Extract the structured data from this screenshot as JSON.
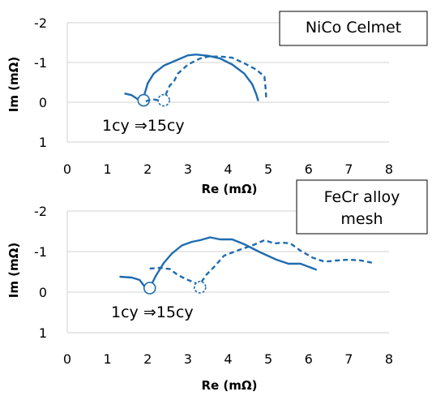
{
  "chart_data": [
    {
      "type": "line",
      "title": "NiCo Celmet",
      "xlabel": "Re (mΩ)",
      "ylabel": "Im  (mΩ)",
      "xlim": [
        0,
        8
      ],
      "ylim": [
        -2,
        1
      ],
      "y_inverted": true,
      "x_ticks": [
        "0",
        "1",
        "2",
        "3",
        "4",
        "5",
        "6",
        "7",
        "8"
      ],
      "y_ticks": [
        "-2",
        "-1",
        "0",
        "1"
      ],
      "grid": "horizontal",
      "annotation": "1cy ⇒15cy",
      "series": [
        {
          "style": "solid",
          "color": "#1f6cb0",
          "points": [
            [
              1.42,
              -0.22
            ],
            [
              1.6,
              -0.18
            ],
            [
              1.75,
              -0.08
            ],
            [
              1.9,
              -0.05
            ],
            [
              1.92,
              -0.2
            ],
            [
              2.0,
              -0.48
            ],
            [
              2.15,
              -0.72
            ],
            [
              2.4,
              -0.92
            ],
            [
              2.7,
              -1.05
            ],
            [
              3.0,
              -1.18
            ],
            [
              3.2,
              -1.2
            ],
            [
              3.5,
              -1.17
            ],
            [
              3.8,
              -1.1
            ],
            [
              4.1,
              -0.95
            ],
            [
              4.4,
              -0.72
            ],
            [
              4.6,
              -0.45
            ],
            [
              4.7,
              -0.2
            ],
            [
              4.75,
              -0.03
            ]
          ],
          "marker": [
            1.9,
            -0.05
          ]
        },
        {
          "style": "dashed",
          "color": "#1f6cb0",
          "points": [
            [
              1.95,
              -0.02
            ],
            [
              2.1,
              -0.08
            ],
            [
              2.25,
              -0.05
            ],
            [
              2.4,
              -0.05
            ],
            [
              2.45,
              -0.2
            ],
            [
              2.55,
              -0.42
            ],
            [
              2.65,
              -0.52
            ],
            [
              2.75,
              -0.72
            ],
            [
              3.0,
              -0.95
            ],
            [
              3.3,
              -1.1
            ],
            [
              3.5,
              -1.15
            ],
            [
              3.8,
              -1.15
            ],
            [
              4.1,
              -1.12
            ],
            [
              4.4,
              -0.98
            ],
            [
              4.7,
              -0.82
            ],
            [
              4.9,
              -0.65
            ],
            [
              4.93,
              -0.35
            ],
            [
              4.95,
              -0.05
            ]
          ],
          "marker": [
            2.4,
            -0.05
          ]
        }
      ]
    },
    {
      "type": "line",
      "title": "FeCr alloy\nmesh",
      "xlabel": "Re (mΩ)",
      "ylabel": "Im  (mΩ)",
      "xlim": [
        0,
        8
      ],
      "ylim": [
        -2,
        1
      ],
      "y_inverted": true,
      "x_ticks": [
        "0",
        "1",
        "2",
        "3",
        "4",
        "5",
        "6",
        "7",
        "8"
      ],
      "y_ticks": [
        "-2",
        "-1",
        "0",
        "1"
      ],
      "grid": "horizontal",
      "annotation": "1cy ⇒15cy",
      "series": [
        {
          "style": "solid",
          "color": "#1f6cb0",
          "points": [
            [
              1.3,
              -0.38
            ],
            [
              1.6,
              -0.36
            ],
            [
              1.8,
              -0.3
            ],
            [
              1.95,
              -0.1
            ],
            [
              2.05,
              -0.1
            ],
            [
              2.2,
              -0.4
            ],
            [
              2.4,
              -0.72
            ],
            [
              2.6,
              -0.95
            ],
            [
              2.85,
              -1.15
            ],
            [
              3.1,
              -1.24
            ],
            [
              3.3,
              -1.28
            ],
            [
              3.55,
              -1.35
            ],
            [
              3.8,
              -1.3
            ],
            [
              4.1,
              -1.3
            ],
            [
              4.4,
              -1.18
            ],
            [
              4.8,
              -0.98
            ],
            [
              5.2,
              -0.8
            ],
            [
              5.5,
              -0.7
            ],
            [
              5.8,
              -0.7
            ],
            [
              6.2,
              -0.55
            ]
          ],
          "marker": [
            2.05,
            -0.1
          ]
        },
        {
          "style": "dashed",
          "color": "#1f6cb0",
          "points": [
            [
              2.05,
              -0.58
            ],
            [
              2.3,
              -0.6
            ],
            [
              2.55,
              -0.57
            ],
            [
              2.75,
              -0.42
            ],
            [
              3.0,
              -0.3
            ],
            [
              3.2,
              -0.22
            ],
            [
              3.3,
              -0.2
            ],
            [
              3.45,
              -0.42
            ],
            [
              3.65,
              -0.62
            ],
            [
              3.9,
              -0.9
            ],
            [
              4.3,
              -1.05
            ],
            [
              4.6,
              -1.15
            ],
            [
              4.9,
              -1.28
            ],
            [
              5.15,
              -1.2
            ],
            [
              5.35,
              -1.22
            ],
            [
              5.55,
              -1.2
            ],
            [
              5.8,
              -1.02
            ],
            [
              6.1,
              -0.85
            ],
            [
              6.4,
              -0.75
            ],
            [
              6.7,
              -0.78
            ],
            [
              7.0,
              -0.8
            ],
            [
              7.3,
              -0.78
            ],
            [
              7.6,
              -0.72
            ]
          ],
          "marker": [
            3.3,
            -0.12
          ]
        }
      ]
    }
  ]
}
